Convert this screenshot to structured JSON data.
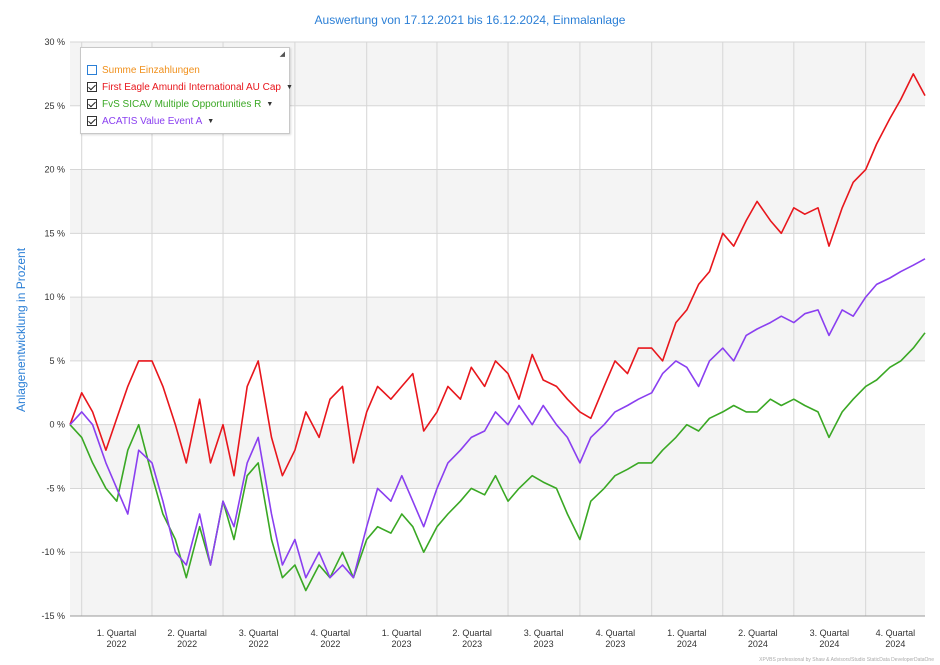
{
  "chart_data": {
    "type": "line",
    "title": "Auswertung von 17.12.2021 bis 16.12.2024, Einmalanlage",
    "ylabel": "Anlagenentwicklung in Prozent",
    "ylim": [
      -15,
      30
    ],
    "yticks": [
      "30 %",
      "25 %",
      "20 %",
      "15 %",
      "10 %",
      "5 %",
      "0 %",
      "-5 %",
      "-10 %",
      "-15 %"
    ],
    "ytick_values": [
      30,
      25,
      20,
      15,
      10,
      5,
      0,
      -5,
      -10,
      -15
    ],
    "x_range": [
      "2021-12-17",
      "2024-12-16"
    ],
    "quarters": [
      {
        "label1": "1. Quartal",
        "label2": "2022",
        "start": "2022-01-01",
        "end": "2022-03-31"
      },
      {
        "label1": "2. Quartal",
        "label2": "2022",
        "start": "2022-04-01",
        "end": "2022-06-30"
      },
      {
        "label1": "3. Quartal",
        "label2": "2022",
        "start": "2022-07-01",
        "end": "2022-09-30"
      },
      {
        "label1": "4. Quartal",
        "label2": "2022",
        "start": "2022-10-01",
        "end": "2022-12-31"
      },
      {
        "label1": "1. Quartal",
        "label2": "2023",
        "start": "2023-01-01",
        "end": "2023-03-31"
      },
      {
        "label1": "2. Quartal",
        "label2": "2023",
        "start": "2023-04-01",
        "end": "2023-06-30"
      },
      {
        "label1": "3. Quartal",
        "label2": "2023",
        "start": "2023-07-01",
        "end": "2023-09-30"
      },
      {
        "label1": "4. Quartal",
        "label2": "2023",
        "start": "2023-10-01",
        "end": "2023-12-31"
      },
      {
        "label1": "1. Quartal",
        "label2": "2024",
        "start": "2024-01-01",
        "end": "2024-03-31"
      },
      {
        "label1": "2. Quartal",
        "label2": "2024",
        "start": "2024-04-01",
        "end": "2024-06-30"
      },
      {
        "label1": "3. Quartal",
        "label2": "2024",
        "start": "2024-07-01",
        "end": "2024-09-30"
      },
      {
        "label1": "4. Quartal",
        "label2": "2024",
        "start": "2024-10-01",
        "end": "2024-12-16"
      }
    ],
    "grid": true,
    "legend_position": "top-left",
    "legend": [
      {
        "name": "Summe Einzahlungen",
        "color": "#f0901c",
        "checked": false
      },
      {
        "name": "First Eagle Amundi International AU Cap",
        "color": "#e8161c",
        "checked": true
      },
      {
        "name": "FvS SICAV Multiple Opportunities R",
        "color": "#3aa824",
        "checked": true
      },
      {
        "name": "ACATIS Value Event A",
        "color": "#8a3ff0",
        "checked": true
      }
    ],
    "series": [
      {
        "name": "First Eagle Amundi International AU Cap",
        "color": "#e8161c",
        "x": [
          "2021-12-17",
          "2022-01-01",
          "2022-01-15",
          "2022-02-01",
          "2022-02-15",
          "2022-03-01",
          "2022-03-15",
          "2022-04-01",
          "2022-04-15",
          "2022-05-01",
          "2022-05-15",
          "2022-06-01",
          "2022-06-15",
          "2022-07-01",
          "2022-07-15",
          "2022-08-01",
          "2022-08-15",
          "2022-09-01",
          "2022-09-15",
          "2022-10-01",
          "2022-10-15",
          "2022-11-01",
          "2022-11-15",
          "2022-12-01",
          "2022-12-15",
          "2023-01-01",
          "2023-01-15",
          "2023-02-01",
          "2023-02-15",
          "2023-03-01",
          "2023-03-15",
          "2023-04-01",
          "2023-04-15",
          "2023-05-01",
          "2023-05-15",
          "2023-06-01",
          "2023-06-15",
          "2023-07-01",
          "2023-07-15",
          "2023-08-01",
          "2023-08-15",
          "2023-09-01",
          "2023-09-15",
          "2023-10-01",
          "2023-10-15",
          "2023-11-01",
          "2023-11-15",
          "2023-12-01",
          "2023-12-15",
          "2024-01-01",
          "2024-01-15",
          "2024-02-01",
          "2024-02-15",
          "2024-03-01",
          "2024-03-15",
          "2024-04-01",
          "2024-04-15",
          "2024-05-01",
          "2024-05-15",
          "2024-06-01",
          "2024-06-15",
          "2024-07-01",
          "2024-07-15",
          "2024-08-01",
          "2024-08-15",
          "2024-09-01",
          "2024-09-15",
          "2024-10-01",
          "2024-10-15",
          "2024-11-01",
          "2024-11-15",
          "2024-12-01",
          "2024-12-16"
        ],
        "y": [
          0,
          2.5,
          1,
          -2,
          0.5,
          3,
          5,
          5,
          3,
          0,
          -3,
          2,
          -3,
          0,
          -4,
          3,
          5,
          -1,
          -4,
          -2,
          1,
          -1,
          2,
          3,
          -3,
          1,
          3,
          2,
          3,
          4,
          -0.5,
          1,
          3,
          2,
          4.5,
          3,
          5,
          4,
          2,
          5.5,
          3.5,
          3,
          2,
          1,
          0.5,
          3,
          5,
          4,
          6,
          6,
          5,
          8,
          9,
          11,
          12,
          15,
          14,
          16,
          17.5,
          16,
          15,
          17,
          16.5,
          17,
          14,
          17,
          19,
          20,
          22,
          24,
          25.5,
          27.5,
          25.8
        ]
      },
      {
        "name": "FvS SICAV Multiple Opportunities R",
        "color": "#3aa824",
        "x": [
          "2021-12-17",
          "2022-01-01",
          "2022-01-15",
          "2022-02-01",
          "2022-02-15",
          "2022-03-01",
          "2022-03-15",
          "2022-04-01",
          "2022-04-15",
          "2022-05-01",
          "2022-05-15",
          "2022-06-01",
          "2022-06-15",
          "2022-07-01",
          "2022-07-15",
          "2022-08-01",
          "2022-08-15",
          "2022-09-01",
          "2022-09-15",
          "2022-10-01",
          "2022-10-15",
          "2022-11-01",
          "2022-11-15",
          "2022-12-01",
          "2022-12-15",
          "2023-01-01",
          "2023-01-15",
          "2023-02-01",
          "2023-02-15",
          "2023-03-01",
          "2023-03-15",
          "2023-04-01",
          "2023-04-15",
          "2023-05-01",
          "2023-05-15",
          "2023-06-01",
          "2023-06-15",
          "2023-07-01",
          "2023-07-15",
          "2023-08-01",
          "2023-08-15",
          "2023-09-01",
          "2023-09-15",
          "2023-10-01",
          "2023-10-15",
          "2023-11-01",
          "2023-11-15",
          "2023-12-01",
          "2023-12-15",
          "2024-01-01",
          "2024-01-15",
          "2024-02-01",
          "2024-02-15",
          "2024-03-01",
          "2024-03-15",
          "2024-04-01",
          "2024-04-15",
          "2024-05-01",
          "2024-05-15",
          "2024-06-01",
          "2024-06-15",
          "2024-07-01",
          "2024-07-15",
          "2024-08-01",
          "2024-08-15",
          "2024-09-01",
          "2024-09-15",
          "2024-10-01",
          "2024-10-15",
          "2024-11-01",
          "2024-11-15",
          "2024-12-01",
          "2024-12-16"
        ],
        "y": [
          0,
          -1,
          -3,
          -5,
          -6,
          -2,
          0,
          -4,
          -7,
          -9,
          -12,
          -8,
          -11,
          -6,
          -9,
          -4,
          -3,
          -9,
          -12,
          -11,
          -13,
          -11,
          -12,
          -10,
          -12,
          -9,
          -8,
          -8.5,
          -7,
          -8,
          -10,
          -8,
          -7,
          -6,
          -5,
          -5.5,
          -4,
          -6,
          -5,
          -4,
          -4.5,
          -5,
          -7,
          -9,
          -6,
          -5,
          -4,
          -3.5,
          -3,
          -3,
          -2,
          -1,
          0,
          -0.5,
          0.5,
          1,
          1.5,
          1,
          1,
          2,
          1.5,
          2,
          1.5,
          1,
          -1,
          1,
          2,
          3,
          3.5,
          4.5,
          5,
          6,
          7.2
        ]
      },
      {
        "name": "ACATIS Value Event A",
        "color": "#8a3ff0",
        "x": [
          "2021-12-17",
          "2022-01-01",
          "2022-01-15",
          "2022-02-01",
          "2022-02-15",
          "2022-03-01",
          "2022-03-15",
          "2022-04-01",
          "2022-04-15",
          "2022-05-01",
          "2022-05-15",
          "2022-06-01",
          "2022-06-15",
          "2022-07-01",
          "2022-07-15",
          "2022-08-01",
          "2022-08-15",
          "2022-09-01",
          "2022-09-15",
          "2022-10-01",
          "2022-10-15",
          "2022-11-01",
          "2022-11-15",
          "2022-12-01",
          "2022-12-15",
          "2023-01-01",
          "2023-01-15",
          "2023-02-01",
          "2023-02-15",
          "2023-03-01",
          "2023-03-15",
          "2023-04-01",
          "2023-04-15",
          "2023-05-01",
          "2023-05-15",
          "2023-06-01",
          "2023-06-15",
          "2023-07-01",
          "2023-07-15",
          "2023-08-01",
          "2023-08-15",
          "2023-09-01",
          "2023-09-15",
          "2023-10-01",
          "2023-10-15",
          "2023-11-01",
          "2023-11-15",
          "2023-12-01",
          "2023-12-15",
          "2024-01-01",
          "2024-01-15",
          "2024-02-01",
          "2024-02-15",
          "2024-03-01",
          "2024-03-15",
          "2024-04-01",
          "2024-04-15",
          "2024-05-01",
          "2024-05-15",
          "2024-06-01",
          "2024-06-15",
          "2024-07-01",
          "2024-07-15",
          "2024-08-01",
          "2024-08-15",
          "2024-09-01",
          "2024-09-15",
          "2024-10-01",
          "2024-10-15",
          "2024-11-01",
          "2024-11-15",
          "2024-12-01",
          "2024-12-16"
        ],
        "y": [
          0,
          1,
          0,
          -3,
          -5,
          -7,
          -2,
          -3,
          -6,
          -10,
          -11,
          -7,
          -11,
          -6,
          -8,
          -3,
          -1,
          -7,
          -11,
          -9,
          -12,
          -10,
          -12,
          -11,
          -12,
          -8,
          -5,
          -6,
          -4,
          -6,
          -8,
          -5,
          -3,
          -2,
          -1,
          -0.5,
          1,
          0,
          1.5,
          0,
          1.5,
          0,
          -1,
          -3,
          -1,
          0,
          1,
          1.5,
          2,
          2.5,
          4,
          5,
          4.5,
          3,
          5,
          6,
          5,
          7,
          7.5,
          8,
          8.5,
          8,
          8.7,
          9,
          7,
          9,
          8.5,
          10,
          11,
          11.5,
          12,
          12.5,
          13
        ]
      }
    ]
  },
  "footer_note": "XPVBS professional by Shaw & Advisors/Studio StaticData DeveloperDataOne"
}
